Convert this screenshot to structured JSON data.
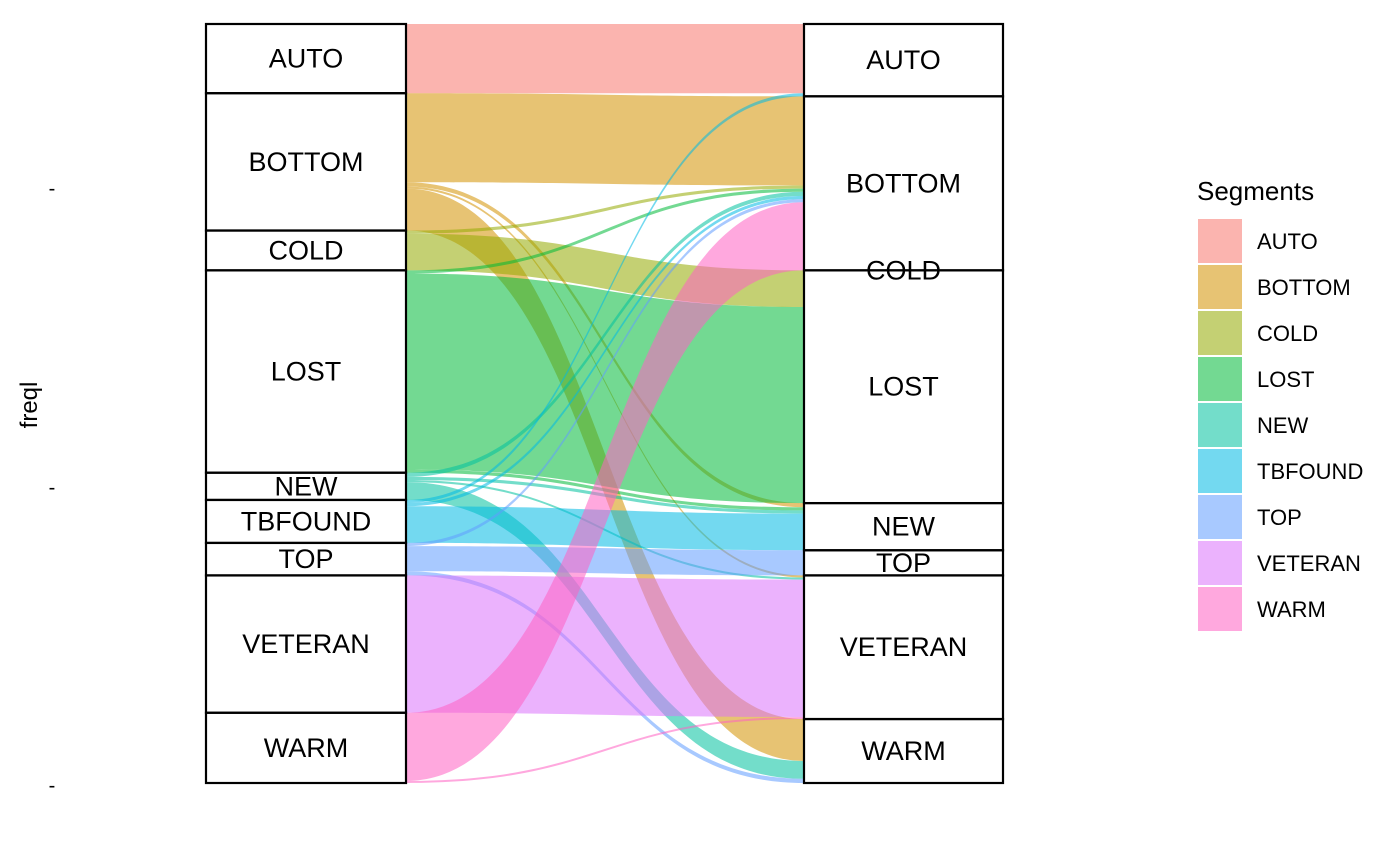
{
  "chart_data": {
    "type": "alluvial",
    "ylabel": "freql",
    "y_ticks": [
      "-",
      "-",
      "-"
    ],
    "legend": {
      "title": "Segments",
      "position": "right"
    },
    "segments": [
      "AUTO",
      "BOTTOM",
      "COLD",
      "LOST",
      "NEW",
      "TBFOUND",
      "TOP",
      "VETERAN",
      "WARM"
    ],
    "colors": {
      "AUTO": "#F8766D",
      "BOTTOM": "#D39200",
      "COLD": "#93AA00",
      "LOST": "#00BA38",
      "NEW": "#00C19F",
      "TBFOUND": "#00B9E3",
      "TOP": "#619CFF",
      "VETERAN": "#DB72FB",
      "WARM": "#FF61C3"
    },
    "axis1_order": [
      "AUTO",
      "BOTTOM",
      "COLD",
      "LOST",
      "NEW",
      "TBFOUND",
      "TOP",
      "VETERAN",
      "WARM"
    ],
    "axis2_order": [
      "AUTO",
      "BOTTOM",
      "COLD",
      "LOST",
      "NEW",
      "TOP",
      "VETERAN",
      "WARM"
    ],
    "flows": [
      {
        "from": "AUTO",
        "to": "AUTO",
        "value": 66
      },
      {
        "from": "BOTTOM",
        "to": "BOTTOM",
        "value": 85
      },
      {
        "from": "BOTTOM",
        "to": "NEW",
        "value": 4
      },
      {
        "from": "BOTTOM",
        "to": "VETERAN",
        "value": 2
      },
      {
        "from": "BOTTOM",
        "to": "WARM",
        "value": 40
      },
      {
        "from": "COLD",
        "to": "BOTTOM",
        "value": 3
      },
      {
        "from": "COLD",
        "to": "LOST",
        "value": 35
      },
      {
        "from": "LOST",
        "to": "BOTTOM",
        "value": 3
      },
      {
        "from": "LOST",
        "to": "LOST",
        "value": 187
      },
      {
        "from": "LOST",
        "to": "NEW",
        "value": 3
      },
      {
        "from": "NEW",
        "to": "BOTTOM",
        "value": 4
      },
      {
        "from": "NEW",
        "to": "NEW",
        "value": 3
      },
      {
        "from": "NEW",
        "to": "VETERAN",
        "value": 2
      },
      {
        "from": "NEW",
        "to": "WARM",
        "value": 17
      },
      {
        "from": "TBFOUND",
        "to": "AUTO",
        "value": 3
      },
      {
        "from": "TBFOUND",
        "to": "NEW",
        "value": 35
      },
      {
        "from": "TBFOUND",
        "to": "BOTTOM",
        "value": 3
      },
      {
        "from": "TOP",
        "to": "BOTTOM",
        "value": 3
      },
      {
        "from": "TOP",
        "to": "TOP",
        "value": 24
      },
      {
        "from": "TOP",
        "to": "WARM",
        "value": 4
      },
      {
        "from": "VETERAN",
        "to": "VETERAN",
        "value": 131
      },
      {
        "from": "WARM",
        "to": "BOTTOM",
        "value": 65
      },
      {
        "from": "WARM",
        "to": "VETERAN",
        "value": 2
      }
    ]
  }
}
